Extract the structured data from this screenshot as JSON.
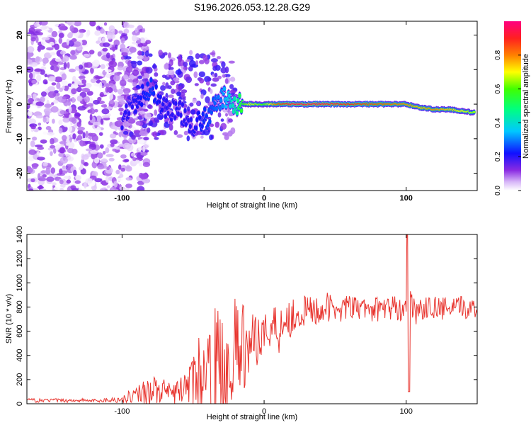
{
  "title": "S196.2026.053.12.28.G29",
  "chart_data": [
    {
      "type": "heatmap",
      "xlabel": "Height of straight line (km)",
      "ylabel": "Frequency (Hz)",
      "xlim": [
        -167,
        150
      ],
      "ylim": [
        -25,
        24
      ],
      "xticks": [
        -100,
        0,
        100
      ],
      "yticks": [
        -20,
        -10,
        0,
        10,
        20
      ],
      "colorbar": {
        "label": "Normalized spectral amplitude",
        "range": [
          0,
          1
        ],
        "ticks": [
          "0.0",
          "0.2",
          "0.4",
          "0.6",
          "0.8"
        ],
        "tick_values": [
          0,
          0.2,
          0.4,
          0.6,
          0.8
        ]
      },
      "ridge": {
        "description_values_only": true,
        "x": [
          -100,
          -90,
          -80,
          -70,
          -60,
          -50,
          -40,
          -30,
          -20,
          -10,
          0,
          10,
          20,
          40,
          60,
          80,
          100,
          110,
          120,
          130,
          140,
          148
        ],
        "freq": [
          -5,
          0,
          5,
          -1,
          -2,
          -6,
          -4,
          2,
          0,
          0,
          0,
          0,
          0,
          0,
          0,
          0,
          0,
          -1,
          -1.5,
          -1.5,
          -2,
          -2.5
        ],
        "amplitude": [
          0.2,
          0.2,
          0.25,
          0.2,
          0.2,
          0.2,
          0.25,
          0.3,
          0.45,
          0.7,
          0.6,
          0.85,
          0.95,
          0.95,
          0.9,
          0.85,
          0.8,
          0.75,
          0.8,
          0.75,
          0.7,
          0.65
        ]
      }
    },
    {
      "type": "line",
      "xlabel": "Height of straight line (km)",
      "ylabel": "SNR (10 * v/v)",
      "xlim": [
        -167,
        150
      ],
      "ylim": [
        0,
        1400
      ],
      "xticks": [
        -100,
        0,
        100
      ],
      "yticks": [
        0,
        200,
        400,
        600,
        800,
        1000,
        1200,
        1400
      ],
      "series": [
        {
          "name": "SNR",
          "color": "#e8342e",
          "x": [
            -167,
            -160,
            -150,
            -140,
            -130,
            -120,
            -110,
            -100,
            -95,
            -90,
            -85,
            -80,
            -75,
            -70,
            -65,
            -60,
            -55,
            -50,
            -45,
            -40,
            -35,
            -30,
            -25,
            -20,
            -15,
            -10,
            -5,
            0,
            5,
            10,
            15,
            20,
            25,
            30,
            35,
            40,
            45,
            50,
            55,
            60,
            65,
            70,
            75,
            80,
            85,
            90,
            95,
            100,
            102,
            105,
            110,
            115,
            120,
            125,
            130,
            135,
            140,
            145,
            150
          ],
          "y": [
            30,
            25,
            30,
            25,
            30,
            25,
            30,
            35,
            60,
            80,
            100,
            120,
            110,
            90,
            80,
            100,
            150,
            180,
            250,
            220,
            300,
            260,
            350,
            420,
            450,
            500,
            560,
            600,
            620,
            660,
            700,
            720,
            750,
            760,
            770,
            780,
            790,
            780,
            790,
            800,
            790,
            780,
            790,
            780,
            800,
            790,
            780,
            800,
            1200,
            760,
            780,
            790,
            800,
            780,
            790,
            780,
            800,
            790,
            780
          ],
          "envelope": [
            50,
            40,
            45,
            40,
            45,
            40,
            50,
            60,
            110,
            150,
            200,
            250,
            230,
            200,
            160,
            200,
            300,
            380,
            600,
            500,
            900,
            700,
            800,
            900,
            900,
            700,
            800,
            750,
            800,
            950,
            850,
            900,
            880,
            900,
            920,
            900,
            920,
            880,
            900,
            900,
            880,
            880,
            900,
            880,
            900,
            900,
            880,
            900,
            1400,
            880,
            880,
            880,
            900,
            880,
            880,
            880,
            900,
            880,
            860
          ]
        }
      ]
    }
  ]
}
